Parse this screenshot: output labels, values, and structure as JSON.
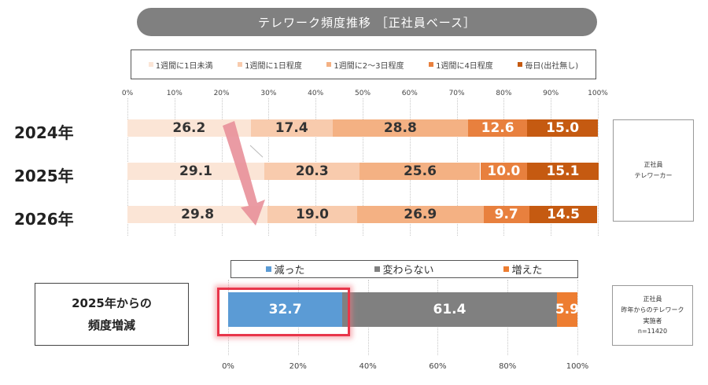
{
  "title": "テレワーク頻度推移 ［正社員ベース］",
  "colors": {
    "cat1": "#fbe5d6",
    "cat2": "#f8cbad",
    "cat3": "#f4b183",
    "cat4": "#e8803e",
    "cat5": "#c55a11",
    "decreased": "#5b9bd5",
    "unchanged": "#808080",
    "increased": "#ed7d31",
    "arrow": "#e8909a",
    "highlight": "#e8354a"
  },
  "chart_data": [
    {
      "type": "bar",
      "orientation": "horizontal",
      "stacked": true,
      "title": "テレワーク頻度推移 ［正社員ベース］",
      "categories": [
        "2024年",
        "2025年",
        "2026年"
      ],
      "series": [
        {
          "name": "1週間に1日未満",
          "values": [
            26.2,
            29.1,
            29.8
          ]
        },
        {
          "name": "1週間に1日程度",
          "values": [
            17.4,
            20.3,
            19.0
          ]
        },
        {
          "name": "1週間に2～3日程度",
          "values": [
            28.8,
            25.6,
            26.9
          ]
        },
        {
          "name": "1週間に4日程度",
          "values": [
            12.6,
            10.0,
            9.7
          ]
        },
        {
          "name": "毎日(出社無し)",
          "values": [
            15.0,
            15.1,
            14.5
          ]
        }
      ],
      "x_ticks": [
        "0%",
        "10%",
        "20%",
        "30%",
        "40%",
        "50%",
        "60%",
        "70%",
        "80%",
        "90%",
        "100%"
      ],
      "xlim": [
        0,
        100
      ],
      "legend_position": "top",
      "note": "正社員\nテレワーカー"
    },
    {
      "type": "bar",
      "orientation": "horizontal",
      "stacked": true,
      "categories": [
        "2025年からの頻度増減"
      ],
      "category_label_lines": [
        "2025年からの",
        "頻度増減"
      ],
      "series": [
        {
          "name": "減った",
          "values": [
            32.7
          ]
        },
        {
          "name": "変わらない",
          "values": [
            61.4
          ]
        },
        {
          "name": "増えた",
          "values": [
            5.9
          ]
        }
      ],
      "x_ticks": [
        "0%",
        "20%",
        "40%",
        "60%",
        "80%",
        "100%"
      ],
      "xlim": [
        0,
        100
      ],
      "legend_position": "top",
      "highlighted_series": "減った",
      "note": [
        "正社員",
        "昨年からのテレワーク",
        "実施者",
        "n=11420"
      ]
    }
  ]
}
